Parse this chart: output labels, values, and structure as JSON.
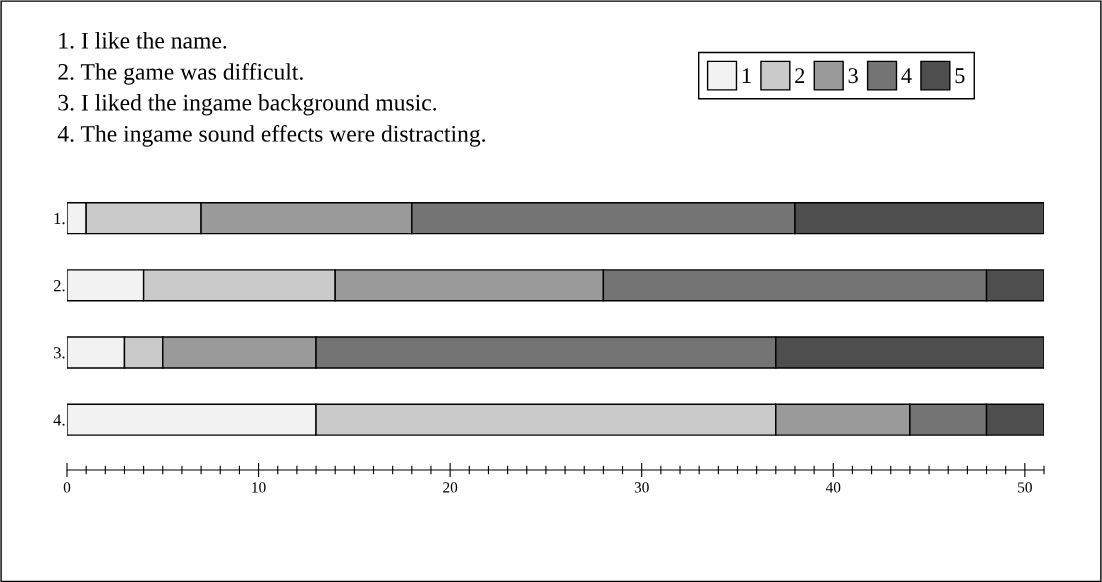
{
  "chart_data": {
    "type": "bar",
    "orientation": "horizontal",
    "stacked": true,
    "categories": [
      "1.",
      "2.",
      "3.",
      "4."
    ],
    "series": [
      {
        "name": "1",
        "color": "#f2f2f2",
        "values": [
          1,
          4,
          3,
          13
        ]
      },
      {
        "name": "2",
        "color": "#cacaca",
        "values": [
          6,
          10,
          2,
          24
        ]
      },
      {
        "name": "3",
        "color": "#9a9a9a",
        "values": [
          11,
          14,
          8,
          7
        ]
      },
      {
        "name": "4",
        "color": "#747474",
        "values": [
          20,
          20,
          24,
          4
        ]
      },
      {
        "name": "5",
        "color": "#4e4e4e",
        "values": [
          13,
          3,
          14,
          3
        ]
      }
    ],
    "xlim": [
      0,
      51
    ],
    "xticks": [
      0,
      {
        "value": 1,
        "label": null
      },
      {
        "value": 2,
        "label": null
      },
      {
        "value": 3,
        "label": null
      },
      {
        "value": 4,
        "label": null
      },
      {
        "value": 5,
        "label": null
      },
      {
        "value": 6,
        "label": null
      },
      {
        "value": 7,
        "label": null
      },
      {
        "value": 8,
        "label": null
      },
      {
        "value": 9,
        "label": null
      },
      10,
      {
        "value": 11,
        "label": null
      },
      {
        "value": 12,
        "label": null
      },
      {
        "value": 13,
        "label": null
      },
      {
        "value": 14,
        "label": null
      },
      {
        "value": 15,
        "label": null
      },
      {
        "value": 16,
        "label": null
      },
      {
        "value": 17,
        "label": null
      },
      {
        "value": 18,
        "label": null
      },
      {
        "value": 19,
        "label": null
      },
      20,
      {
        "value": 21,
        "label": null
      },
      {
        "value": 22,
        "label": null
      },
      {
        "value": 23,
        "label": null
      },
      {
        "value": 24,
        "label": null
      },
      {
        "value": 25,
        "label": null
      },
      {
        "value": 26,
        "label": null
      },
      {
        "value": 27,
        "label": null
      },
      {
        "value": 28,
        "label": null
      },
      {
        "value": 29,
        "label": null
      },
      30,
      {
        "value": 31,
        "label": null
      },
      {
        "value": 32,
        "label": null
      },
      {
        "value": 33,
        "label": null
      },
      {
        "value": 34,
        "label": null
      },
      {
        "value": 35,
        "label": null
      },
      {
        "value": 36,
        "label": null
      },
      {
        "value": 37,
        "label": null
      },
      {
        "value": 38,
        "label": null
      },
      {
        "value": 39,
        "label": null
      },
      40,
      {
        "value": 41,
        "label": null
      },
      {
        "value": 42,
        "label": null
      },
      {
        "value": 43,
        "label": null
      },
      {
        "value": 44,
        "label": null
      },
      {
        "value": 45,
        "label": null
      },
      {
        "value": 46,
        "label": null
      },
      {
        "value": 47,
        "label": null
      },
      {
        "value": 48,
        "label": null
      },
      {
        "value": 49,
        "label": null
      },
      50,
      {
        "value": 51,
        "label": null
      }
    ],
    "legend": "top right",
    "grid": false,
    "annotations": [
      "1. I like the name.",
      "2. The game was difficult.",
      "3. I liked the ingame background music.",
      "4. The ingame sound effects were distracting."
    ]
  }
}
